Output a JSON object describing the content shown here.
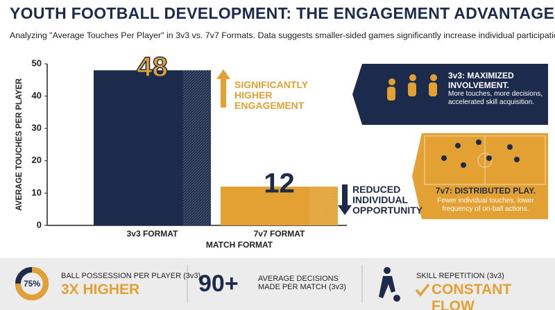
{
  "chart_data": {
    "type": "bar",
    "title": "YOUTH FOOTBALL DEVELOPMENT: THE ENGAGEMENT ADVANTAGE",
    "subtitle": "Analyzing \"Average Touches Per Player\" in 3v3 vs. 7v7 Formats. Data suggests smaller-sided games significantly increase individual participation.",
    "categories": [
      "3v3 FORMAT",
      "7v7 FORMAT"
    ],
    "values": [
      48,
      12
    ],
    "colors": [
      "#1c2b4b",
      "#e2a132"
    ],
    "xlabel": "MATCH FORMAT",
    "ylabel": "AVERAGE TOUCHES PER PLAYER",
    "ylim": [
      0,
      50
    ],
    "yticks": [
      0,
      10,
      20,
      30,
      40,
      50
    ],
    "annotations": [
      "SIGNIFICANTLY HIGHER ENGAGEMENT",
      "REDUCED INDIVIDUAL OPPORTUNITY"
    ]
  },
  "callouts": [
    {
      "title": "3v3: MAXIMIZED INVOLVEMENT.",
      "text": "More touches, more decisions, accelerated skill acquisition."
    },
    {
      "title": "7v7: DISTRIBUTED PLAY.",
      "text": "Fewer individual touches, lower frequency of on-ball actions."
    }
  ],
  "stats": [
    {
      "gauge": {
        "value": 75,
        "label": "75%"
      },
      "label": "BALL POSSESSION PER PLAYER (3v3)",
      "value": "3X HIGHER"
    },
    {
      "value": "90+",
      "label": "AVERAGE DECISIONS MADE PER MATCH (3v3)"
    },
    {
      "label": "SKILL REPETITION (3v3)",
      "value": "CONSTANT FLOW"
    }
  ]
}
